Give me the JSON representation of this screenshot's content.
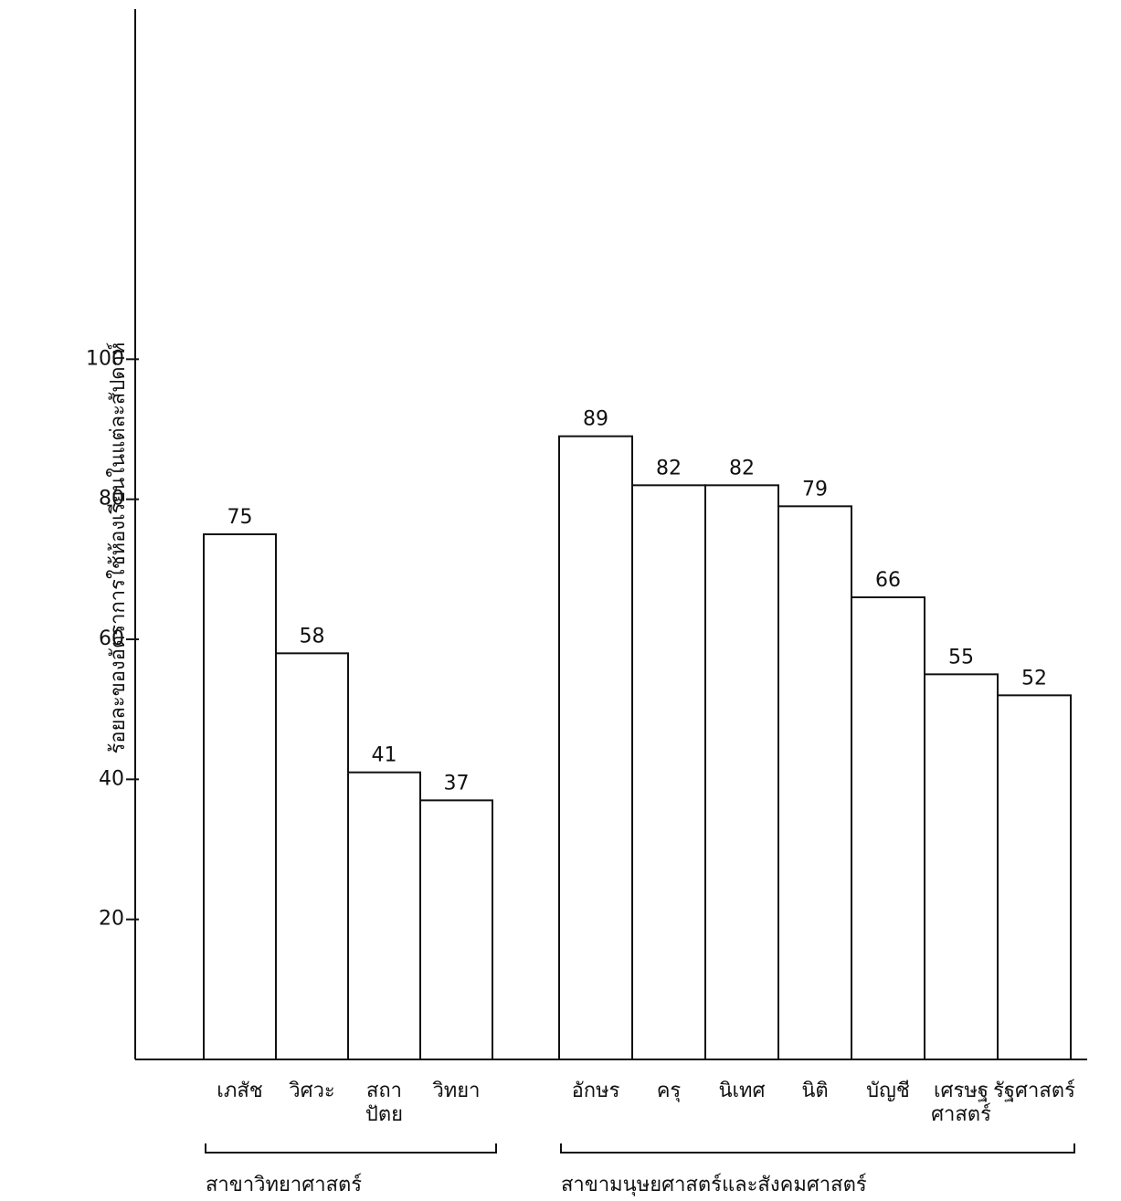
{
  "chart_data": {
    "type": "bar",
    "y_label": "ร้อยละของอัตราการใช้ห้องเรียนในแต่ละสัปดาห์",
    "ylim": [
      0,
      150
    ],
    "yticks": [
      20,
      40,
      60,
      80,
      100
    ],
    "color": "#ffffff",
    "groups": [
      {
        "name": "สาขาวิทยาศาสตร์",
        "categories": [
          "เภสัช",
          "วิศวะ",
          [
            "สถา",
            "ปัตย"
          ],
          "วิทยา"
        ],
        "values": [
          75,
          58,
          41,
          37
        ]
      },
      {
        "name": "สาขามนุษยศาสตร์และสังคมศาสตร์",
        "categories": [
          "อักษร",
          "ครุ",
          "นิเทศ",
          "นิติ",
          "บัญชี",
          [
            "เศรษฐ",
            "ศาสตร์"
          ],
          "รัฐศาสตร์"
        ],
        "values": [
          89,
          82,
          82,
          79,
          66,
          55,
          52
        ]
      }
    ]
  }
}
